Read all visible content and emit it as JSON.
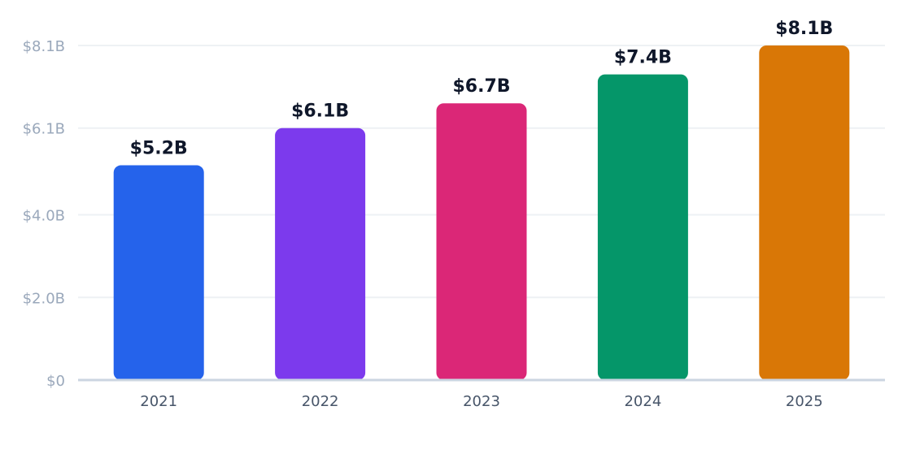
{
  "chart_data": {
    "type": "bar",
    "categories": [
      "2021",
      "2022",
      "2023",
      "2024",
      "2025"
    ],
    "values": [
      5.2,
      6.1,
      6.7,
      7.4,
      8.1
    ],
    "value_labels": [
      "$5.2B",
      "$6.1B",
      "$6.7B",
      "$7.4B",
      "$8.1B"
    ],
    "bar_colors": [
      "#2563eb",
      "#7c3aed",
      "#db2777",
      "#059669",
      "#d97706"
    ],
    "y_ticks": [
      0,
      2.0,
      4.0,
      6.1,
      8.1
    ],
    "y_tick_labels": [
      "$0",
      "$2.0B",
      "$4.0B",
      "$6.1B",
      "$8.1B"
    ],
    "ylim": [
      0,
      8.1
    ],
    "title": "",
    "xlabel": "",
    "ylabel": "",
    "grid": true,
    "legend": "none"
  }
}
